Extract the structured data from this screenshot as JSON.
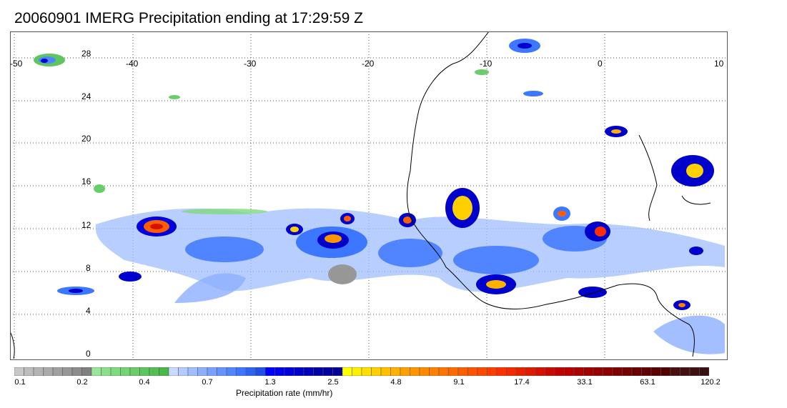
{
  "title": "20060901 IMERG Precipitation ending at 17:29:59 Z",
  "map": {
    "lon_range": [
      -50,
      10
    ],
    "lat_range": [
      -0.5,
      29.5
    ],
    "lon_ticks": [
      "-50",
      "-40",
      "-30",
      "-20",
      "-10",
      "0",
      "10"
    ],
    "lat_ticks": [
      "28",
      "24",
      "20",
      "16",
      "12",
      "8",
      "4",
      "0"
    ],
    "grid": "dotted",
    "region": "Tropical Atlantic and West Africa"
  },
  "colorbar": {
    "title": "Precipitation rate (mm/hr)",
    "tick_labels": [
      "0.1",
      "0.2",
      "0.4",
      "0.7",
      "1.3",
      "2.5",
      "4.8",
      "9.1",
      "17.4",
      "33.1",
      "63.1",
      "120.2"
    ],
    "colors": [
      "#c8c8c8",
      "#bdbdbd",
      "#b4b4b4",
      "#aaaaaa",
      "#a0a0a0",
      "#979797",
      "#8c8c8c",
      "#7f7f7f",
      "#98e698",
      "#8ce08c",
      "#80da80",
      "#74d474",
      "#69cd69",
      "#5ec65e",
      "#53bf53",
      "#49b849",
      "#c9d9ff",
      "#b4cbff",
      "#a0bdff",
      "#8cafff",
      "#78a1ff",
      "#6493ff",
      "#5085ff",
      "#3c77ff",
      "#2e63f5",
      "#2050e8",
      "#0000ff",
      "#0000ee",
      "#0000dd",
      "#0000cc",
      "#0000bb",
      "#0000aa",
      "#0000a0",
      "#000096",
      "#ffff00",
      "#fff000",
      "#ffe000",
      "#ffd000",
      "#ffc000",
      "#ffb000",
      "#ffa000",
      "#ff9500",
      "#ff8a00",
      "#ff7f00",
      "#ff7400",
      "#ff6900",
      "#ff5e00",
      "#ff5300",
      "#ff4800",
      "#ff3d00",
      "#ff3000",
      "#f52800",
      "#eb2000",
      "#e11800",
      "#d71000",
      "#cd0800",
      "#c30000",
      "#b80000",
      "#ad0000",
      "#a20000",
      "#970000",
      "#8c0000",
      "#810000",
      "#760000",
      "#6b0000",
      "#600000",
      "#5a0000",
      "#520000",
      "#4a1010",
      "#441010",
      "#3e1010",
      "#381010"
    ]
  }
}
